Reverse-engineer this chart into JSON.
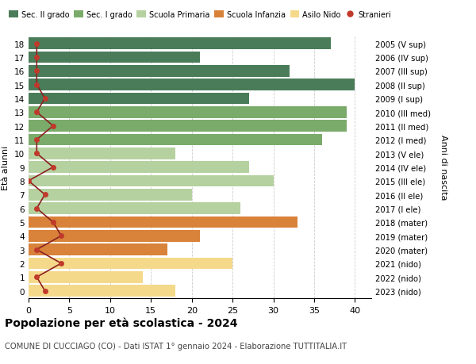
{
  "ages": [
    18,
    17,
    16,
    15,
    14,
    13,
    12,
    11,
    10,
    9,
    8,
    7,
    6,
    5,
    4,
    3,
    2,
    1,
    0
  ],
  "right_labels": [
    "2005 (V sup)",
    "2006 (IV sup)",
    "2007 (III sup)",
    "2008 (II sup)",
    "2009 (I sup)",
    "2010 (III med)",
    "2011 (II med)",
    "2012 (I med)",
    "2013 (V ele)",
    "2014 (IV ele)",
    "2015 (III ele)",
    "2016 (II ele)",
    "2017 (I ele)",
    "2018 (mater)",
    "2019 (mater)",
    "2020 (mater)",
    "2021 (nido)",
    "2022 (nido)",
    "2023 (nido)"
  ],
  "bar_values": [
    37,
    21,
    32,
    40,
    27,
    39,
    39,
    36,
    18,
    27,
    30,
    20,
    26,
    33,
    21,
    17,
    25,
    14,
    18
  ],
  "stranieri": [
    1,
    1,
    1,
    1,
    2,
    1,
    3,
    1,
    1,
    3,
    0,
    2,
    1,
    3,
    4,
    1,
    4,
    1,
    2
  ],
  "bar_colors": [
    "#4a7c59",
    "#4a7c59",
    "#4a7c59",
    "#4a7c59",
    "#4a7c59",
    "#7aab6a",
    "#7aab6a",
    "#7aab6a",
    "#b5d1a0",
    "#b5d1a0",
    "#b5d1a0",
    "#b5d1a0",
    "#b5d1a0",
    "#d8823a",
    "#d8823a",
    "#d8823a",
    "#f5d98b",
    "#f5d98b",
    "#f5d98b"
  ],
  "legend_labels": [
    "Sec. II grado",
    "Sec. I grado",
    "Scuola Primaria",
    "Scuola Infanzia",
    "Asilo Nido",
    "Stranieri"
  ],
  "legend_colors": [
    "#4a7c59",
    "#7aab6a",
    "#b5d1a0",
    "#d8823a",
    "#f5d98b",
    "#c0392b"
  ],
  "ylabel_left": "Età alunni",
  "ylabel_right": "Anni di nascita",
  "xlim": [
    0,
    42
  ],
  "xticks": [
    0,
    5,
    10,
    15,
    20,
    25,
    30,
    35,
    40
  ],
  "title": "Popolazione per età scolastica - 2024",
  "subtitle": "COMUNE DI CUCCIAGO (CO) - Dati ISTAT 1° gennaio 2024 - Elaborazione TUTTITALIA.IT",
  "stranieri_color": "#c0392b",
  "stranieri_line_color": "#8b2020",
  "bg_color": "#ffffff",
  "grid_color": "#cccccc"
}
